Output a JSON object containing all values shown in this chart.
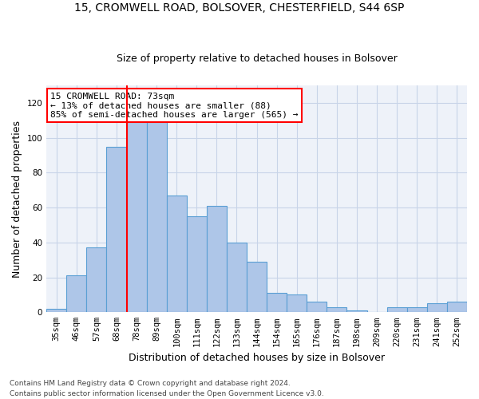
{
  "title1": "15, CROMWELL ROAD, BOLSOVER, CHESTERFIELD, S44 6SP",
  "title2": "Size of property relative to detached houses in Bolsover",
  "xlabel": "Distribution of detached houses by size in Bolsover",
  "ylabel": "Number of detached properties",
  "categories": [
    "35sqm",
    "46sqm",
    "57sqm",
    "68sqm",
    "78sqm",
    "89sqm",
    "100sqm",
    "111sqm",
    "122sqm",
    "133sqm",
    "144sqm",
    "154sqm",
    "165sqm",
    "176sqm",
    "187sqm",
    "198sqm",
    "209sqm",
    "220sqm",
    "231sqm",
    "241sqm",
    "252sqm"
  ],
  "values": [
    2,
    21,
    37,
    95,
    119,
    113,
    67,
    55,
    61,
    40,
    29,
    11,
    10,
    6,
    3,
    1,
    0,
    3,
    3,
    5,
    6
  ],
  "bar_color": "#aec6e8",
  "bar_edge_color": "#5a9fd4",
  "annotation_line1": "15 CROMWELL ROAD: 73sqm",
  "annotation_line2": "← 13% of detached houses are smaller (88)",
  "annotation_line3": "85% of semi-detached houses are larger (565) →",
  "annotation_box_color": "white",
  "annotation_box_edge_color": "red",
  "vline_color": "red",
  "vline_x": 3.5,
  "ylim": [
    0,
    130
  ],
  "yticks": [
    0,
    20,
    40,
    60,
    80,
    100,
    120
  ],
  "footer1": "Contains HM Land Registry data © Crown copyright and database right 2024.",
  "footer2": "Contains public sector information licensed under the Open Government Licence v3.0.",
  "bg_color": "#eef2f9",
  "grid_color": "#c8d4e8",
  "title1_fontsize": 10,
  "title2_fontsize": 9,
  "ylabel_fontsize": 9,
  "xlabel_fontsize": 9,
  "tick_fontsize": 7.5,
  "annot_fontsize": 8
}
